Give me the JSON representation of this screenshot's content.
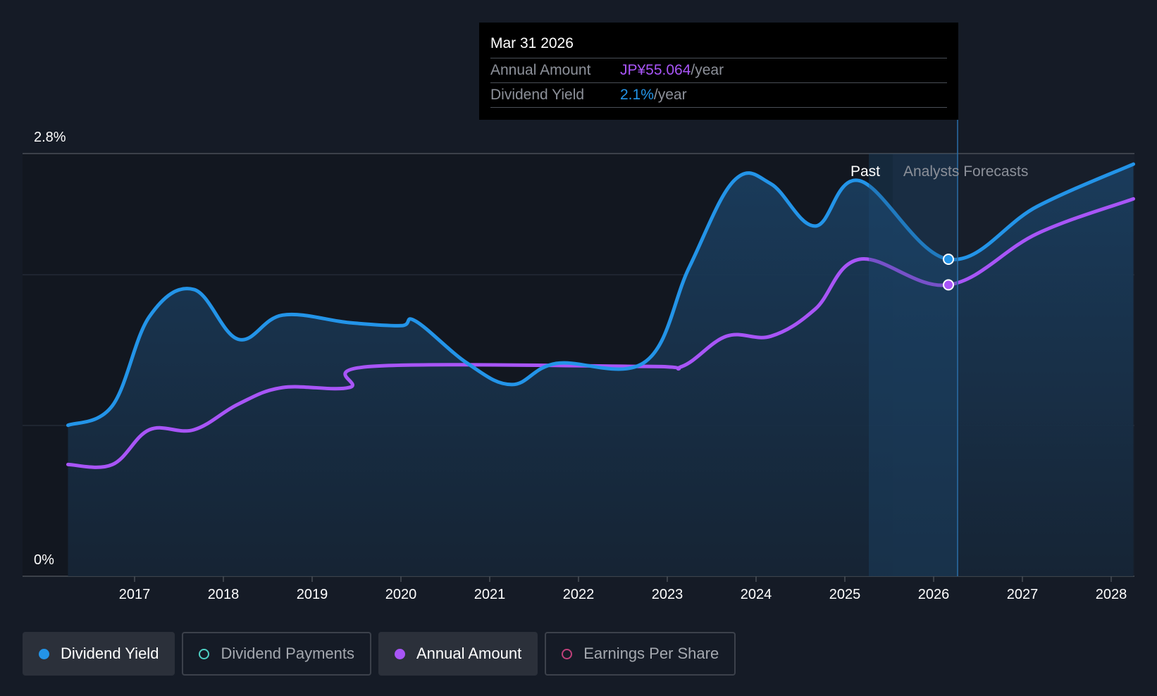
{
  "chart_data": {
    "type": "area",
    "y_axis": {
      "min_label": "0%",
      "max_label": "2.8%",
      "ylim": [
        0,
        2.8
      ]
    },
    "x_tick_labels": [
      "2017",
      "2018",
      "2019",
      "2020",
      "2021",
      "2022",
      "2023",
      "2024",
      "2025",
      "2026",
      "2027",
      "2028"
    ],
    "region_labels": {
      "past": "Past",
      "forecast": "Analysts Forecasts"
    },
    "series": [
      {
        "name": "Dividend Yield",
        "color": "#2394e8",
        "points": [
          [
            "2016-04",
            1.0
          ],
          [
            "2016-10",
            1.13
          ],
          [
            "2017-03",
            1.72
          ],
          [
            "2017-09",
            1.9
          ],
          [
            "2018-03",
            1.57
          ],
          [
            "2018-09",
            1.73
          ],
          [
            "2019-06",
            1.68
          ],
          [
            "2020-01",
            1.66
          ],
          [
            "2020-03",
            1.69
          ],
          [
            "2020-10",
            1.41
          ],
          [
            "2021-04",
            1.27
          ],
          [
            "2021-10",
            1.41
          ],
          [
            "2022-10",
            1.42
          ],
          [
            "2023-04",
            2.05
          ],
          [
            "2023-10",
            2.62
          ],
          [
            "2024-03",
            2.6
          ],
          [
            "2024-09",
            2.32
          ],
          [
            "2025-03",
            2.62
          ],
          [
            "2026-03",
            2.1
          ],
          [
            "2027-03",
            2.45
          ],
          [
            "2028-04",
            2.73
          ]
        ]
      },
      {
        "name": "Annual Amount",
        "color": "#a855f7",
        "points": [
          [
            "2016-04",
            0.74
          ],
          [
            "2016-10",
            0.74
          ],
          [
            "2017-03",
            0.97
          ],
          [
            "2017-09",
            0.97
          ],
          [
            "2018-03",
            1.14
          ],
          [
            "2018-09",
            1.25
          ],
          [
            "2019-06",
            1.25
          ],
          [
            "2019-09",
            1.39
          ],
          [
            "2022-10",
            1.39
          ],
          [
            "2023-03",
            1.39
          ],
          [
            "2023-09",
            1.59
          ],
          [
            "2024-03",
            1.59
          ],
          [
            "2024-09",
            1.77
          ],
          [
            "2025-03",
            2.1
          ],
          [
            "2026-03",
            1.93
          ],
          [
            "2027-03",
            2.27
          ],
          [
            "2028-04",
            2.5
          ]
        ]
      }
    ],
    "tooltip": {
      "date": "Mar 31 2026",
      "rows": [
        {
          "label": "Annual Amount",
          "value": "JP¥55.064",
          "suffix": "/year"
        },
        {
          "label": "Dividend Yield",
          "value": "2.1%",
          "suffix": "/year"
        }
      ]
    },
    "legend": [
      {
        "label": "Dividend Yield",
        "state": "active",
        "marker": "filled",
        "color": "#2394e8"
      },
      {
        "label": "Dividend Payments",
        "state": "inactive",
        "marker": "ring",
        "color": "#4fd1c5"
      },
      {
        "label": "Annual Amount",
        "state": "active",
        "marker": "filled",
        "color": "#a855f7"
      },
      {
        "label": "Earnings Per Share",
        "state": "inactive",
        "marker": "ring",
        "color": "#c0407a"
      }
    ]
  }
}
